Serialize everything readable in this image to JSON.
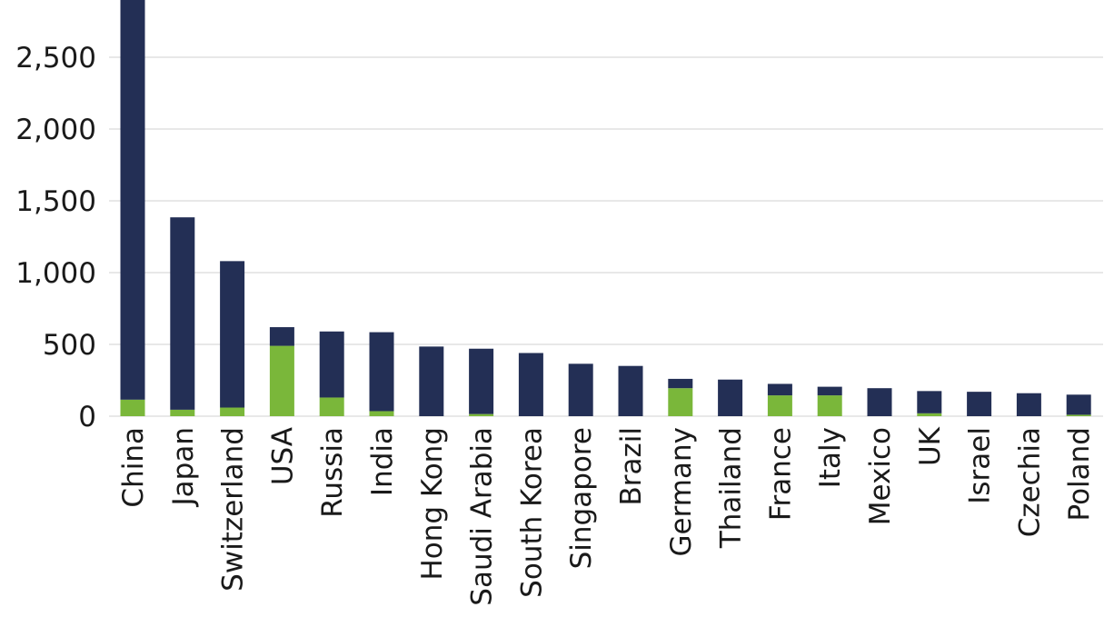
{
  "chart_data": {
    "type": "bar",
    "stacked": true,
    "title": "",
    "xlabel": "",
    "ylabel": "",
    "ylim": [
      0,
      2900
    ],
    "yticks": [
      0,
      500,
      1000,
      1500,
      2000,
      2500
    ],
    "ytick_labels": [
      "0",
      "500",
      "1,000",
      "1,500",
      "2,000",
      "2,500"
    ],
    "grid": true,
    "categories": [
      "China",
      "Japan",
      "Switzerland",
      "USA",
      "Russia",
      "India",
      "Hong Kong",
      "Saudi Arabia",
      "South Korea",
      "Singapore",
      "Brazil",
      "Germany",
      "Thailand",
      "France",
      "Italy",
      "Mexico",
      "UK",
      "Israel",
      "Czechia",
      "Poland"
    ],
    "series": [
      {
        "color": "#7ab73a",
        "values": [
          115,
          45,
          60,
          490,
          130,
          35,
          0,
          15,
          0,
          0,
          0,
          195,
          0,
          145,
          145,
          0,
          20,
          0,
          0,
          10
        ]
      },
      {
        "color": "#232f55",
        "values": [
          2785,
          1340,
          1020,
          130,
          460,
          550,
          485,
          455,
          440,
          365,
          350,
          65,
          255,
          80,
          60,
          195,
          155,
          170,
          160,
          140
        ]
      }
    ]
  }
}
